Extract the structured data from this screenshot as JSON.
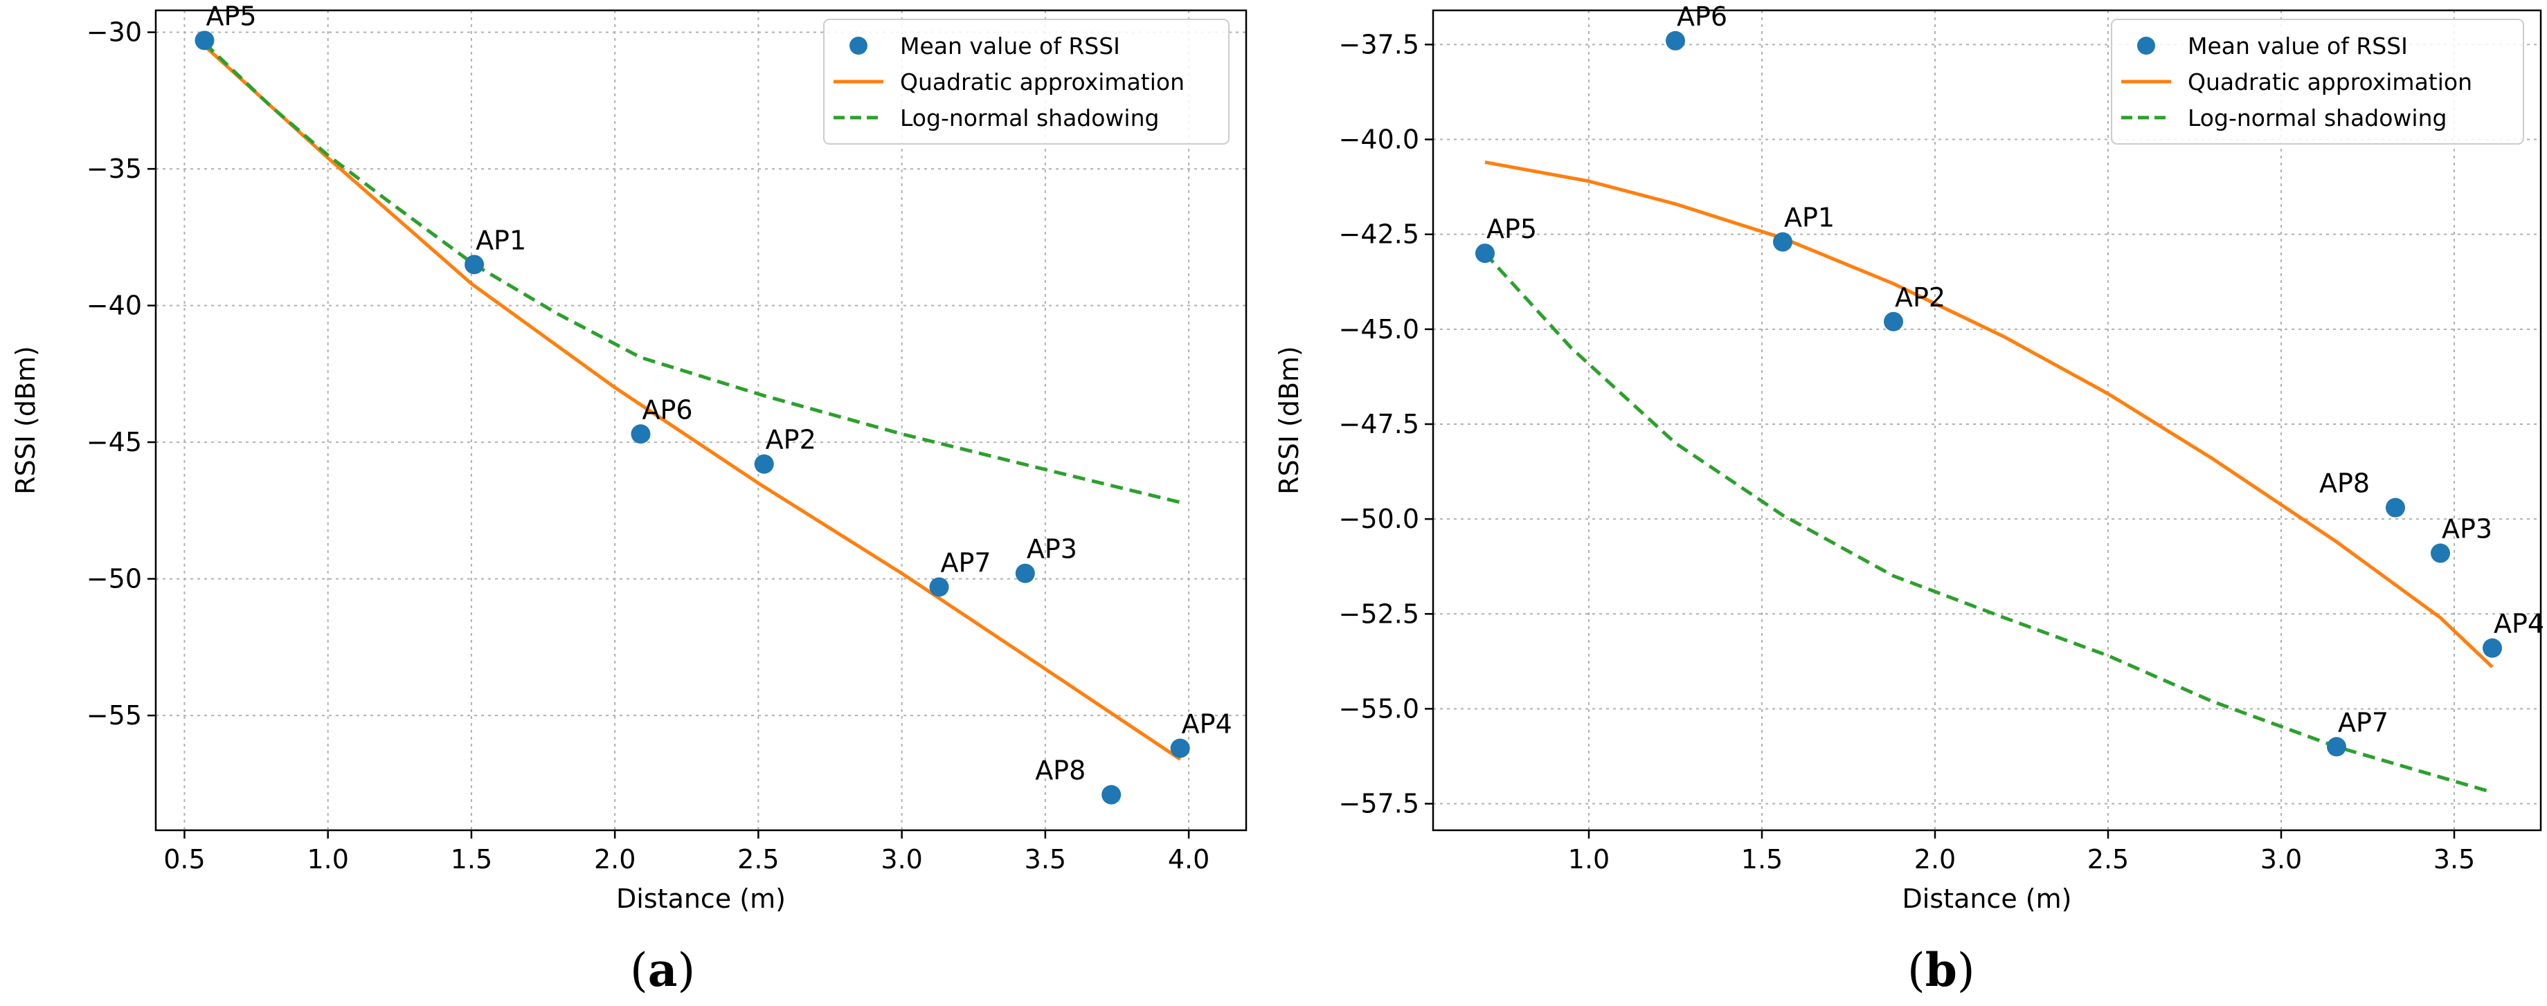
{
  "chart_data": [
    {
      "type": "scatter",
      "panel_label": "a",
      "xlabel": "Distance (m)",
      "ylabel": "RSSI (dBm)",
      "xlim": [
        0.4,
        4.2
      ],
      "ylim": [
        -59.2,
        -29.2
      ],
      "xticks": [
        0.5,
        1.0,
        1.5,
        2.0,
        2.5,
        3.0,
        3.5,
        4.0
      ],
      "xtick_labels": [
        "0.5",
        "1.0",
        "1.5",
        "2.0",
        "2.5",
        "3.0",
        "3.5",
        "4.0"
      ],
      "yticks": [
        -55,
        -50,
        -45,
        -40,
        -35,
        -30
      ],
      "ytick_labels": [
        "−55",
        "−50",
        "−45",
        "−40",
        "−35",
        "−30"
      ],
      "grid": true,
      "legend_position": "top-right",
      "series": [
        {
          "name": "Mean value of RSSI",
          "kind": "scatter",
          "color": "#1f77b4",
          "points": [
            {
              "label": "AP5",
              "x": 0.57,
              "y": -30.3
            },
            {
              "label": "AP1",
              "x": 1.51,
              "y": -38.5
            },
            {
              "label": "AP6",
              "x": 2.09,
              "y": -44.7
            },
            {
              "label": "AP2",
              "x": 2.52,
              "y": -45.8
            },
            {
              "label": "AP7",
              "x": 3.13,
              "y": -50.3
            },
            {
              "label": "AP3",
              "x": 3.43,
              "y": -49.8
            },
            {
              "label": "AP8",
              "x": 3.73,
              "y": -57.9
            },
            {
              "label": "AP4",
              "x": 3.97,
              "y": -56.2
            }
          ]
        },
        {
          "name": "Quadratic approximation",
          "kind": "line",
          "color": "#ff7f0e",
          "x": [
            0.57,
            1.0,
            1.5,
            2.0,
            2.5,
            3.0,
            3.5,
            3.97
          ],
          "y": [
            -30.5,
            -34.6,
            -39.2,
            -43.0,
            -46.5,
            -49.8,
            -53.3,
            -56.6
          ]
        },
        {
          "name": "Log-normal shadowing",
          "kind": "dashed-line",
          "color": "#2ca02c",
          "x": [
            0.57,
            0.8,
            1.0,
            1.2,
            1.51,
            1.8,
            2.09,
            2.52,
            3.0,
            3.5,
            3.97
          ],
          "y": [
            -30.4,
            -32.7,
            -34.5,
            -36.1,
            -38.5,
            -40.3,
            -41.9,
            -43.3,
            -44.7,
            -46.0,
            -47.2
          ]
        }
      ]
    },
    {
      "type": "scatter",
      "panel_label": "b",
      "xlabel": "Distance (m)",
      "ylabel": "RSSI (dBm)",
      "xlim": [
        0.55,
        3.75
      ],
      "ylim": [
        -58.2,
        -36.6
      ],
      "xticks": [
        1.0,
        1.5,
        2.0,
        2.5,
        3.0,
        3.5
      ],
      "xtick_labels": [
        "1.0",
        "1.5",
        "2.0",
        "2.5",
        "3.0",
        "3.5"
      ],
      "yticks": [
        -57.5,
        -55.0,
        -52.5,
        -50.0,
        -47.5,
        -45.0,
        -42.5,
        -40.0,
        -37.5
      ],
      "ytick_labels": [
        "−57.5",
        "−55.0",
        "−52.5",
        "−50.0",
        "−47.5",
        "−45.0",
        "−42.5",
        "−40.0",
        "−37.5"
      ],
      "grid": true,
      "legend_position": "top-right",
      "series": [
        {
          "name": "Mean value of RSSI",
          "kind": "scatter",
          "color": "#1f77b4",
          "points": [
            {
              "label": "AP6",
              "x": 1.25,
              "y": -37.4
            },
            {
              "label": "AP5",
              "x": 0.7,
              "y": -43.0
            },
            {
              "label": "AP1",
              "x": 1.56,
              "y": -42.7
            },
            {
              "label": "AP2",
              "x": 1.88,
              "y": -44.8
            },
            {
              "label": "AP8",
              "x": 3.33,
              "y": -49.7
            },
            {
              "label": "AP3",
              "x": 3.46,
              "y": -50.9
            },
            {
              "label": "AP4",
              "x": 3.61,
              "y": -53.4
            },
            {
              "label": "AP7",
              "x": 3.16,
              "y": -56.0
            }
          ]
        },
        {
          "name": "Quadratic approximation",
          "kind": "line",
          "color": "#ff7f0e",
          "x": [
            0.7,
            1.0,
            1.25,
            1.56,
            1.88,
            2.2,
            2.5,
            2.8,
            3.16,
            3.46,
            3.61
          ],
          "y": [
            -40.6,
            -41.1,
            -41.7,
            -42.6,
            -43.8,
            -45.2,
            -46.7,
            -48.4,
            -50.6,
            -52.6,
            -53.9
          ]
        },
        {
          "name": "Log-normal shadowing",
          "kind": "dashed-line",
          "color": "#2ca02c",
          "x": [
            0.7,
            0.95,
            1.25,
            1.56,
            1.88,
            2.2,
            2.5,
            2.8,
            3.16,
            3.46,
            3.61
          ],
          "y": [
            -43.0,
            -45.5,
            -48.0,
            -49.9,
            -51.5,
            -52.6,
            -53.6,
            -54.8,
            -56.0,
            -56.8,
            -57.2
          ]
        }
      ]
    }
  ]
}
